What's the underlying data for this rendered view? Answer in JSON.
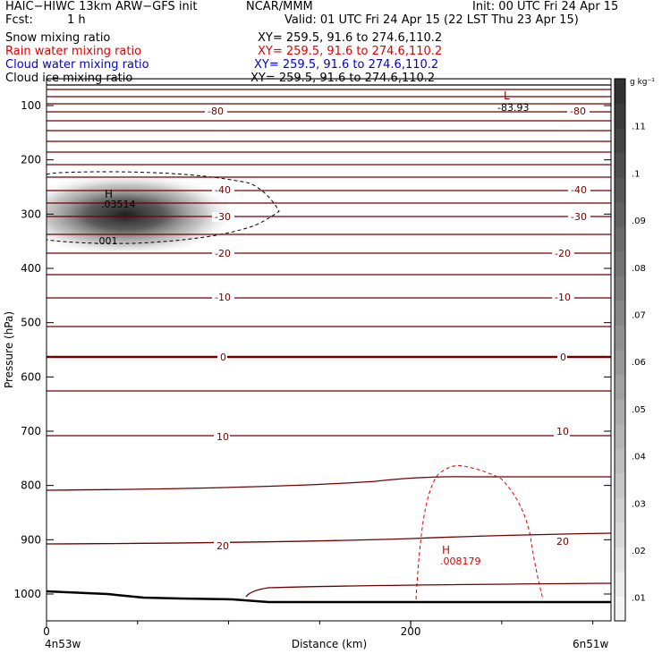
{
  "header": {
    "model": "HAIC−HIWC 13km ARW−GFS init",
    "org": "NCAR/MMM",
    "init": "Init: 00 UTC Fri 24 Apr 15",
    "fcst_label": "Fcst:",
    "fcst_value": "1 h",
    "valid": "Valid: 01 UTC Fri 24 Apr 15 (22 LST Thu 23 Apr 15)"
  },
  "fields": [
    {
      "name": "Snow mixing ratio",
      "xy": "XY= 259.5, 91.6 to 274.6,110.2",
      "color": "#000000"
    },
    {
      "name": "Rain water mixing ratio",
      "xy": "XY= 259.5, 91.6 to 274.6,110.2",
      "color": "#e00000"
    },
    {
      "name": "Cloud water mixing ratio",
      "xy": "XY= 259.5, 91.6 to 274.6,110.2",
      "color": "#0000dd"
    },
    {
      "name": "Cloud ice mixing ratio",
      "xy": "XY= 259.5, 91.6 to 274.6,110.2",
      "color": "#000000"
    }
  ],
  "colorbar": {
    "unit": "g kg⁻¹",
    "ticks": [
      ".01",
      ".02",
      ".03",
      ".04",
      ".05",
      ".06",
      ".07",
      ".08",
      ".09",
      ".1",
      ".11"
    ]
  },
  "chart_data": {
    "type": "cross-section contour",
    "ylabel": "Pressure (hPa)",
    "xlabel": "Distance (km)",
    "y_ticks": [
      "100",
      "200",
      "300",
      "400",
      "500",
      "600",
      "700",
      "800",
      "900",
      "1000"
    ],
    "x_ticks": [
      "0",
      "200"
    ],
    "x_end_labels": [
      "4n53w",
      "6n51w"
    ],
    "xlim": [
      0,
      310
    ],
    "ylim": [
      1050,
      50
    ],
    "temperature_labels": [
      "-80",
      "-40",
      "-30",
      "-20",
      "-10",
      "0",
      "10",
      "20"
    ],
    "temperature_levels_c": [
      -80,
      -40,
      -30,
      -20,
      -10,
      0,
      10,
      20
    ],
    "extrema": [
      {
        "label": "L",
        "value": "-83.93",
        "x_km": 255,
        "p_hpa": 112
      },
      {
        "label": "H",
        "value": ".03514",
        "x_km": 35,
        "p_hpa": 290
      },
      {
        "label": "H",
        "value": ".008179",
        "x_km": 225,
        "p_hpa": 940
      }
    ],
    "contour_labels": [
      ".001"
    ],
    "snow_max_g_kg": 0.03514,
    "rain_max_g_kg": 0.008179
  }
}
